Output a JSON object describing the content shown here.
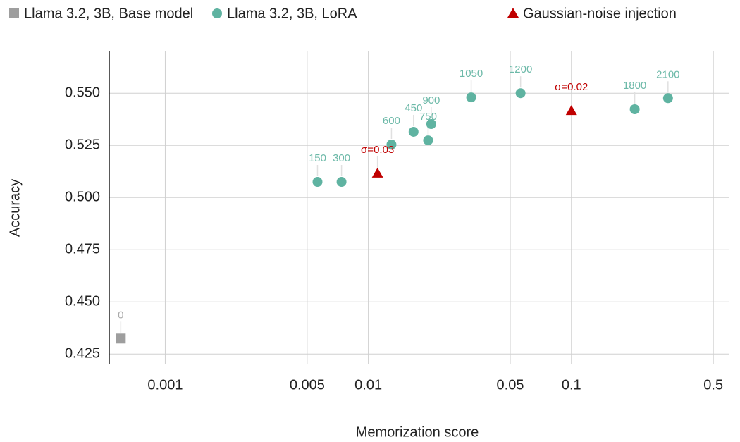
{
  "chart_data": {
    "type": "scatter",
    "x_label": "Memorization score",
    "y_label": "Accuracy",
    "xscale": "log",
    "grid": true,
    "legend": "top",
    "xlim": [
      0.00053,
      0.6
    ],
    "ylim": [
      0.42,
      0.57
    ],
    "xticks": [
      0.001,
      0.005,
      0.01,
      0.05,
      0.1,
      0.5
    ],
    "yticks": [
      0.425,
      {
        "value": 0.45,
        "label": "0.450"
      },
      0.475,
      {
        "value": 0.5,
        "label": "0.500"
      },
      0.525,
      {
        "value": 0.55,
        "label": "0.550"
      }
    ],
    "series": [
      {
        "name": "Llama 3.2, 3B, Base model",
        "color": "#9e9e9e",
        "label_color": "#aaaaaa",
        "marker": "square",
        "x": [
          0.000604
        ],
        "values": [
          0.4324
        ],
        "labels": [
          "0"
        ]
      },
      {
        "name": "Llama 3.2, 3B, LoRA",
        "color": "#5fb3a1",
        "label_color": "#6cb9a8",
        "marker": "circle",
        "x": [
          0.00562,
          0.00738,
          0.013,
          0.0167,
          0.0197,
          0.0204,
          0.0321,
          0.0562,
          0.205,
          0.299
        ],
        "values": [
          0.5075,
          0.5075,
          0.5254,
          0.5315,
          0.5274,
          0.5352,
          0.548,
          0.55,
          0.5423,
          0.5476
        ],
        "labels": [
          "150",
          "300",
          "600",
          "450",
          "750",
          "900",
          "1050",
          "1200",
          "1800",
          "2100"
        ]
      },
      {
        "name": "Gaussian-noise injection",
        "color": "#c00000",
        "label_color": "#c00000",
        "marker": "triangle",
        "x": [
          0.0111,
          0.1
        ],
        "values": [
          0.5116,
          0.5416
        ],
        "labels": [
          "σ=0.03",
          "σ=0.02"
        ]
      }
    ]
  }
}
